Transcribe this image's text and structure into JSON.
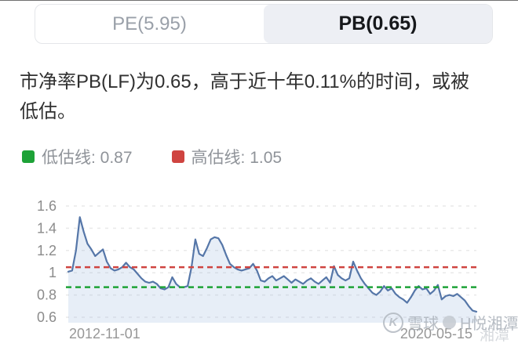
{
  "tabs": {
    "items": [
      {
        "label": "PE(5.95)",
        "active": false
      },
      {
        "label": "PB(0.65)",
        "active": true
      }
    ]
  },
  "description": {
    "lines": [
      "市净率PB(LF)为0.65，高于近十年0.11%的时间，或被",
      "低估。"
    ]
  },
  "legend": {
    "items": [
      {
        "label": "低估线: 0.87",
        "color": "#1da237"
      },
      {
        "label": "高估线: 1.05",
        "color": "#cf4440"
      }
    ]
  },
  "watermark": {
    "logo": "K",
    "brand": "雪球",
    "user": "H悦湘潭",
    "fragment": "湘潭"
  },
  "chart_data": {
    "type": "area",
    "title": "",
    "x_axis": {
      "start_label": "2012-11-01",
      "end_label": "2020-05-15"
    },
    "y_ticks": [
      "1.6",
      "1.4",
      "1.2",
      "1",
      "0.8",
      "0.6"
    ],
    "ylim": [
      0.6,
      1.6
    ],
    "grid": true,
    "grid_color": "#e9e9e9",
    "axis_label_color": "#8b8b8b",
    "x_label_color": "#979797",
    "legend_position": "top",
    "reference_lines": [
      {
        "name": "低估线",
        "value": 0.87,
        "color": "#1da237",
        "style": "dashed"
      },
      {
        "name": "高估线",
        "value": 1.05,
        "color": "#cf4440",
        "style": "dashed"
      }
    ],
    "series": [
      {
        "name": "PB",
        "line_color": "#5576a8",
        "fill_color": "rgba(121,160,209,0.18)",
        "values": [
          1.01,
          1.02,
          1.2,
          1.5,
          1.37,
          1.26,
          1.21,
          1.15,
          1.18,
          1.21,
          1.1,
          1.04,
          1.02,
          1.03,
          1.05,
          1.09,
          1.05,
          1.03,
          0.99,
          0.95,
          0.92,
          0.91,
          0.92,
          0.9,
          0.86,
          0.85,
          0.87,
          0.96,
          0.9,
          0.87,
          0.87,
          0.88,
          1.05,
          1.3,
          1.17,
          1.15,
          1.22,
          1.3,
          1.32,
          1.31,
          1.25,
          1.16,
          1.08,
          1.05,
          1.03,
          1.02,
          1.03,
          1.04,
          1.08,
          1.02,
          0.93,
          0.92,
          0.95,
          0.97,
          0.93,
          0.95,
          0.97,
          0.94,
          0.91,
          0.94,
          0.92,
          0.9,
          0.93,
          0.95,
          0.92,
          0.9,
          0.93,
          0.96,
          0.91,
          1.06,
          0.98,
          0.95,
          0.93,
          0.95,
          1.1,
          1.02,
          0.95,
          0.9,
          0.86,
          0.82,
          0.8,
          0.83,
          0.88,
          0.84,
          0.86,
          0.81,
          0.78,
          0.76,
          0.73,
          0.78,
          0.84,
          0.88,
          0.85,
          0.86,
          0.81,
          0.84,
          0.89,
          0.76,
          0.79,
          0.8,
          0.79,
          0.81,
          0.78,
          0.75,
          0.7,
          0.66,
          0.65
        ]
      }
    ]
  }
}
